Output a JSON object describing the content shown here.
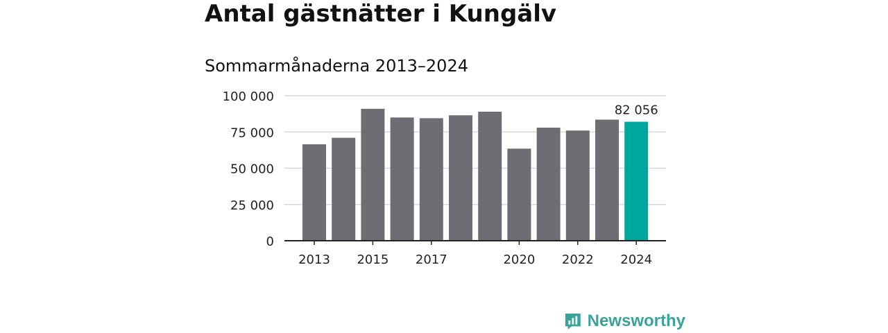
{
  "header": {
    "title": "Antal gästnätter i Kungälv",
    "subtitle": "Sommarmånaderna 2013–2024"
  },
  "branding": {
    "logo_text": "Newsworthy",
    "logo_icon": "bar-chart-icon",
    "logo_color": "#3aa39a"
  },
  "chart_data": {
    "type": "bar",
    "categories": [
      "2013",
      "2014",
      "2015",
      "2016",
      "2017",
      "2018",
      "2019",
      "2020",
      "2021",
      "2022",
      "2023",
      "2024"
    ],
    "values": [
      66500,
      71000,
      91000,
      85000,
      84500,
      86500,
      89000,
      63500,
      78000,
      76000,
      83500,
      82056
    ],
    "x_tick_labels": [
      "2013",
      "",
      "2015",
      "",
      "2017",
      "",
      "",
      "2020",
      "",
      "2022",
      "",
      "2024"
    ],
    "y_tick_labels": [
      "0",
      "25 000",
      "50 000",
      "75 000",
      "100 000"
    ],
    "y_ticks": [
      0,
      25000,
      50000,
      75000,
      100000
    ],
    "ylim": [
      0,
      100000
    ],
    "highlight_index": 11,
    "highlight_label": "82 056",
    "colors": {
      "bar": "#6d6d73",
      "highlight": "#00a79d",
      "grid": "#d9d9d9",
      "axis": "#222222",
      "text": "#222222"
    },
    "grid": true,
    "xlabel": "",
    "ylabel": ""
  }
}
